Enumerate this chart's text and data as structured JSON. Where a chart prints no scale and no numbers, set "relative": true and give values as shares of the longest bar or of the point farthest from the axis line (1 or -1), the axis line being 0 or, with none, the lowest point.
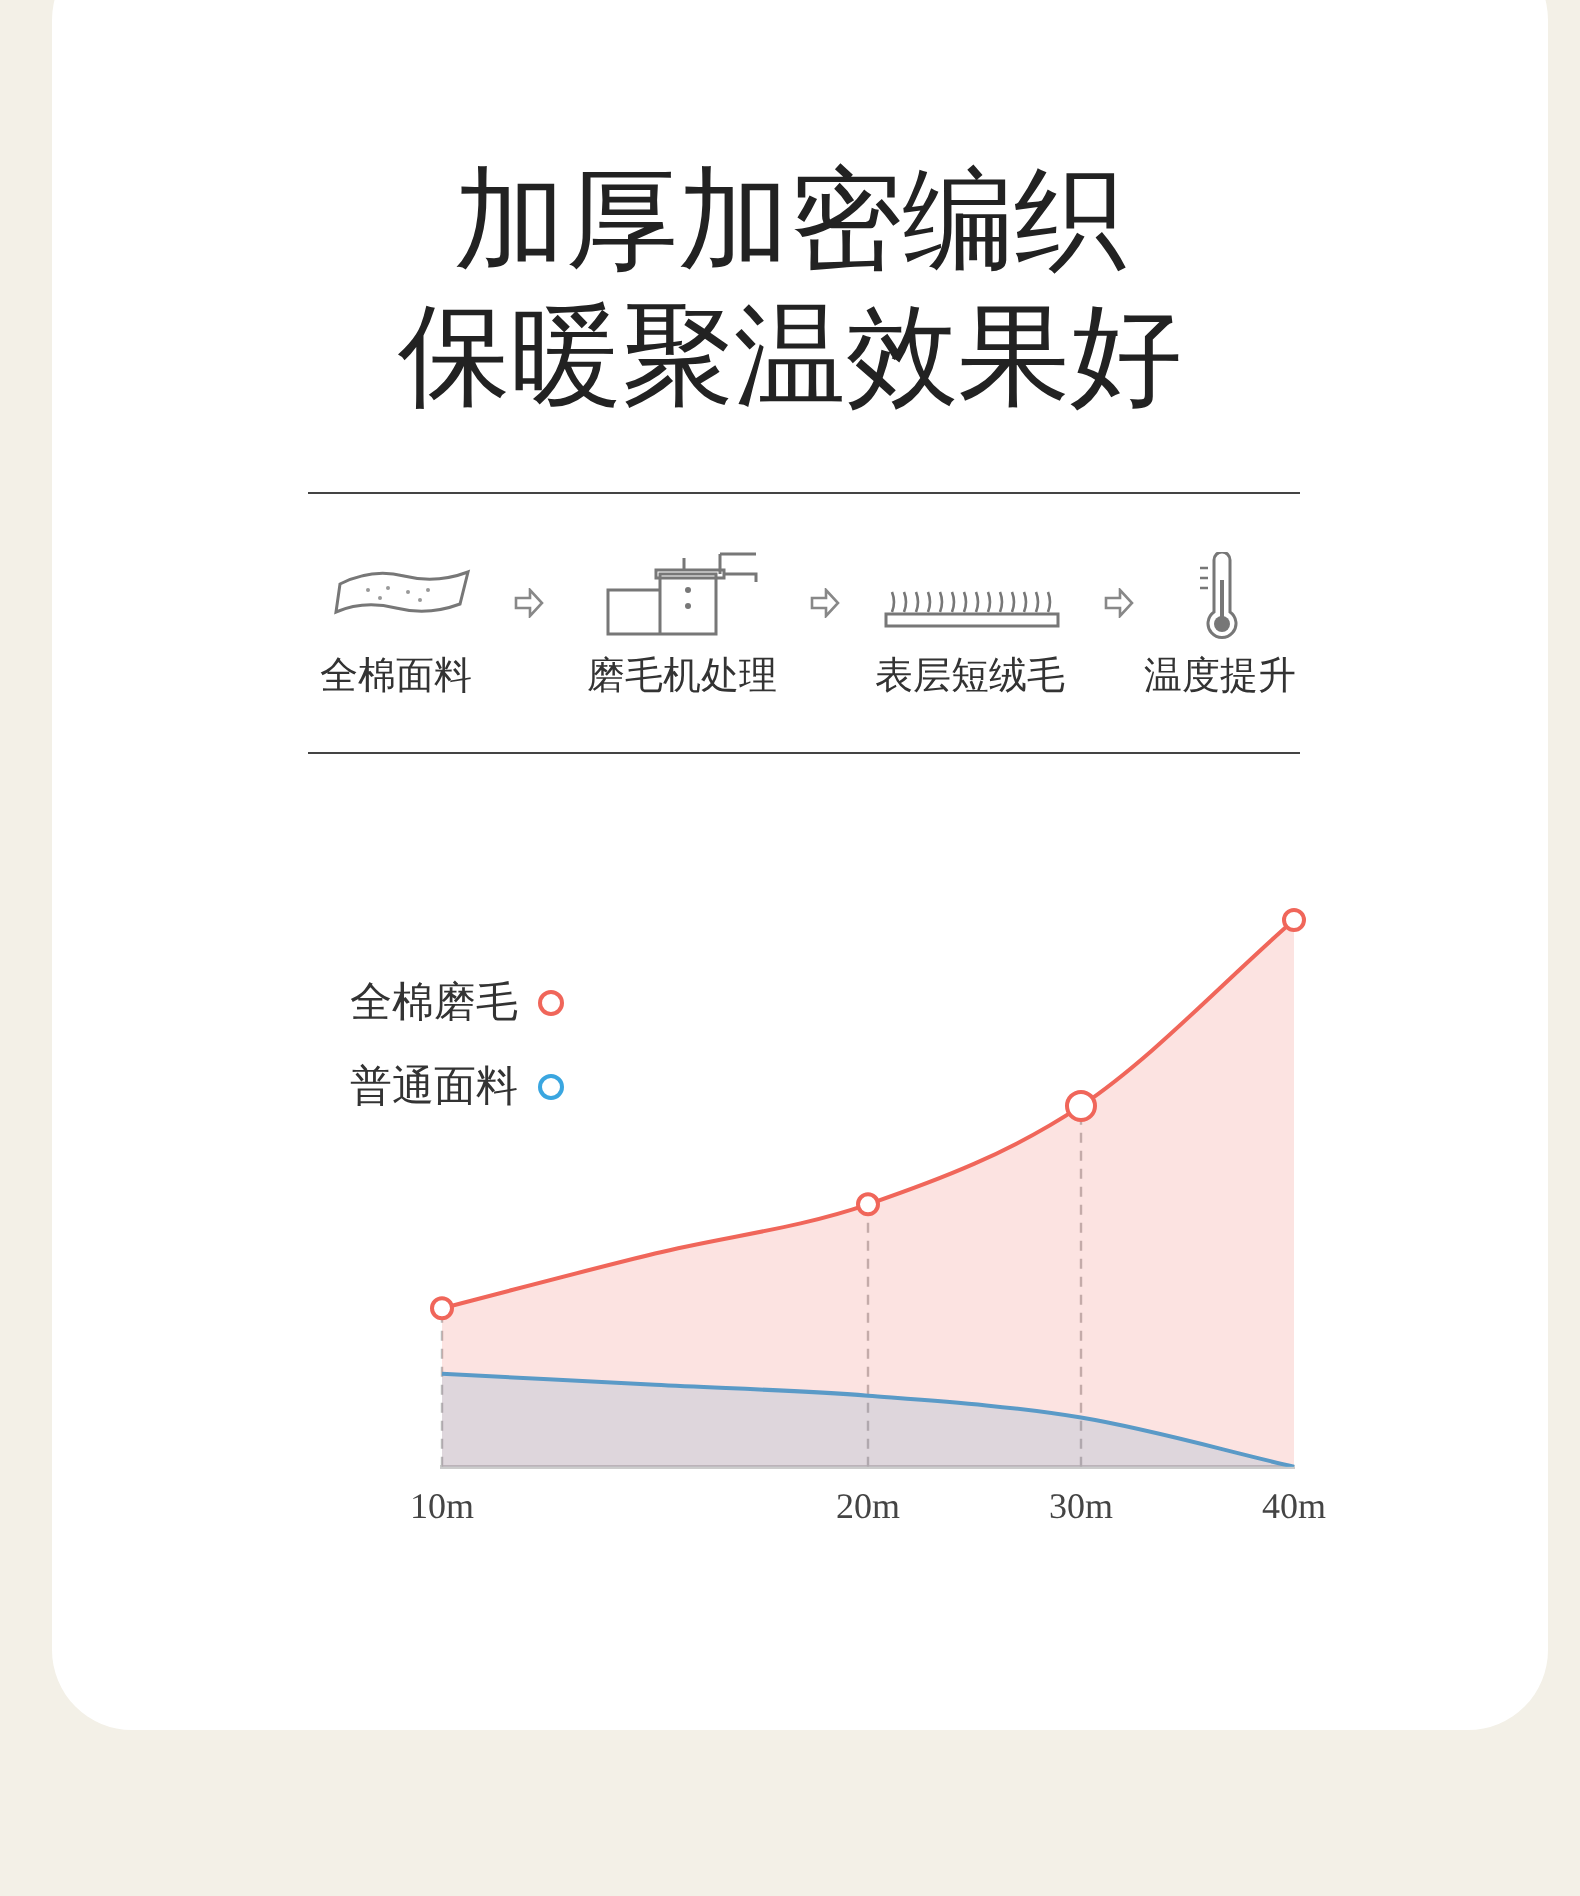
{
  "chart_data": {
    "type": "area",
    "title": "加厚加密编织",
    "subtitle": "保暖聚温效果好",
    "annotations": [
      "全棉面料",
      "磨毛机处理",
      "表层短绒毛",
      "温度提升"
    ],
    "categories": [
      "10m",
      null,
      "20m",
      "30m",
      "40m"
    ],
    "relative": true,
    "legend": "top left",
    "grid": false,
    "series": [
      {
        "name": "全棉磨毛",
        "color": "#f0665a",
        "marker": "circle",
        "values": [
          0.29,
          0.39,
          0.48,
          0.66,
          1
        ]
      },
      {
        "name": "普通面料",
        "color": "#3aa6e0",
        "marker": "none",
        "values": [
          0.17,
          0.15,
          0.13,
          0.09,
          0
        ]
      }
    ],
    "ref_lines": [
      {
        "axis": "x",
        "value": "10m",
        "line_style": "dashed",
        "color": "#bbbbbb"
      },
      {
        "axis": "x",
        "value": "20m",
        "line_style": "dashed",
        "color": "#bbbbbb"
      },
      {
        "axis": "x",
        "value": "30m",
        "line_style": "dashed",
        "color": "#bbbbbb"
      }
    ]
  }
}
